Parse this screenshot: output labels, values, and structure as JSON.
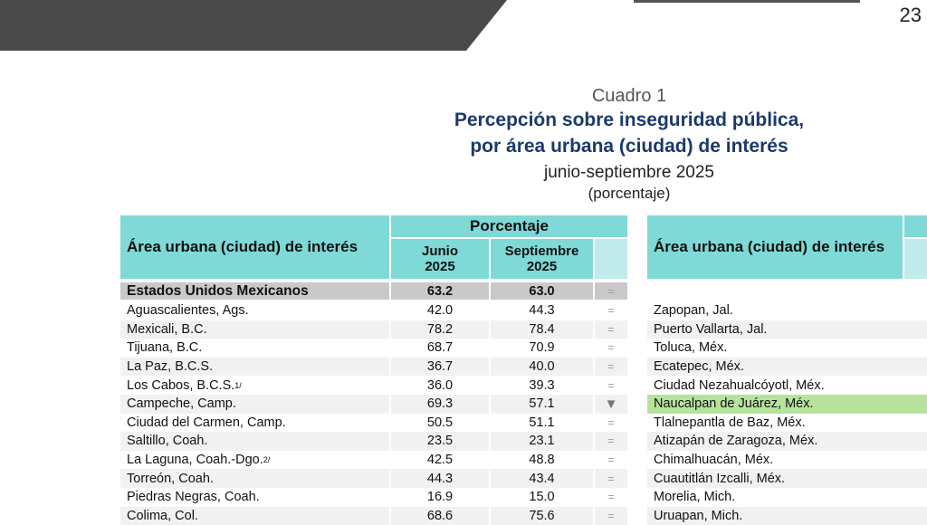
{
  "header": {
    "page_number": "23"
  },
  "caption": {
    "label": "Cuadro 1",
    "title_line1": "Percepción sobre inseguridad pública,",
    "title_line2": "por área urbana (ciudad) de interés",
    "period": "junio-septiembre 2025",
    "unit": "(porcentaje)"
  },
  "table_left": {
    "col_area": "Área urbana (ciudad) de interés",
    "col_group": "Porcentaje",
    "col_june": "Junio 2025",
    "col_sept": "Septiembre 2025",
    "total": {
      "name": "Estados Unidos Mexicanos",
      "june": "63.2",
      "sept": "63.0",
      "change": "="
    },
    "rows": [
      {
        "name": "Aguascalientes, Ags.",
        "june": "42.0",
        "sept": "44.3",
        "change": "="
      },
      {
        "name": "Mexicali, B.C.",
        "june": "78.2",
        "sept": "78.4",
        "change": "="
      },
      {
        "name": "Tijuana, B.C.",
        "june": "68.7",
        "sept": "70.9",
        "change": "="
      },
      {
        "name": "La Paz, B.C.S.",
        "june": "36.7",
        "sept": "40.0",
        "change": "="
      },
      {
        "name": "Los Cabos, B.C.S.",
        "note": "1/",
        "june": "36.0",
        "sept": "39.3",
        "change": "="
      },
      {
        "name": "Campeche, Camp.",
        "june": "69.3",
        "sept": "57.1",
        "change": "▼"
      },
      {
        "name": "Ciudad del Carmen, Camp.",
        "june": "50.5",
        "sept": "51.1",
        "change": "="
      },
      {
        "name": "Saltillo, Coah.",
        "june": "23.5",
        "sept": "23.1",
        "change": "="
      },
      {
        "name": "La Laguna, Coah.-Dgo.",
        "note": "2/",
        "june": "42.5",
        "sept": "48.8",
        "change": "="
      },
      {
        "name": "Torreón, Coah.",
        "june": "44.3",
        "sept": "43.4",
        "change": "="
      },
      {
        "name": "Piedras Negras, Coah.",
        "june": "16.9",
        "sept": "15.0",
        "change": "="
      },
      {
        "name": "Colima, Col.",
        "june": "68.6",
        "sept": "75.6",
        "change": "="
      }
    ]
  },
  "table_right": {
    "col_area": "Área urbana (ciudad) de interés",
    "rows": [
      "Zapopan, Jal.",
      "Puerto Vallarta, Jal.",
      "Toluca, Méx.",
      "Ecatepec, Méx.",
      "Ciudad Nezahualcóyotl, Méx.",
      "Naucalpan de Juárez, Méx.",
      "Tlalnepantla de Baz, Méx.",
      "Atizapán de Zaragoza, Méx.",
      "Chimalhuacán, Méx.",
      "Cuautitlán Izcalli, Méx.",
      "Morelia, Mich.",
      "Uruapan, Mich."
    ]
  }
}
